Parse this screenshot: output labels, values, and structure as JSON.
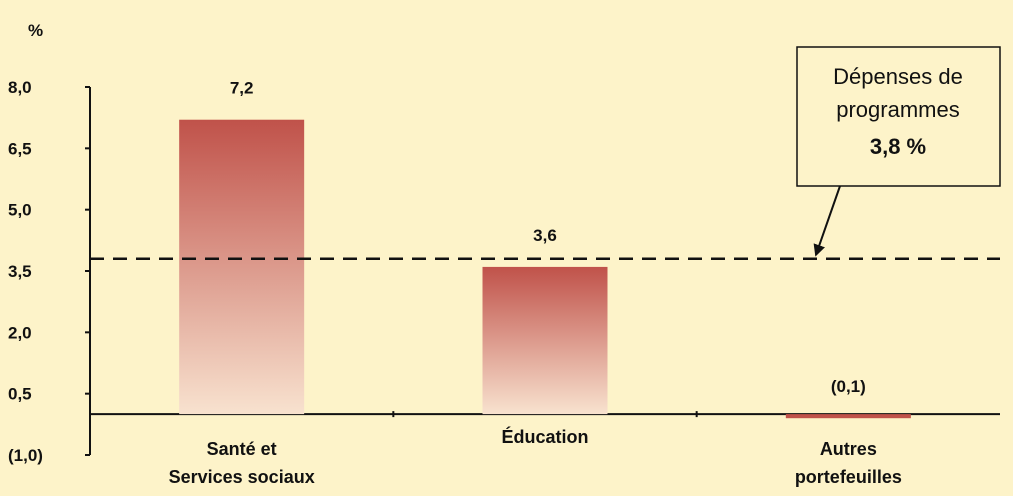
{
  "colors": {
    "background": "#fdf3c9",
    "bar_top": "#c0524a",
    "bar_bottom": "#f6dcc8",
    "axis": "#111111"
  },
  "chart_data": {
    "type": "bar",
    "unit_label": "%",
    "categories": [
      [
        "Santé et",
        "Services sociaux"
      ],
      [
        "Éducation"
      ],
      [
        "Autres",
        "portefeuilles"
      ]
    ],
    "values": [
      7.2,
      3.6,
      -0.1
    ],
    "value_labels": [
      "7,2",
      "3,6",
      "(0,1)"
    ],
    "yticks": [
      -1.0,
      0.5,
      2.0,
      3.5,
      5.0,
      6.5,
      8.0
    ],
    "ytick_labels": [
      "(1,0)",
      "0,5",
      "2,0",
      "3,5",
      "5,0",
      "6,5",
      "8,0"
    ],
    "ylim": [
      -1.0,
      8.0
    ],
    "reference_line": {
      "value": 3.8,
      "label_lines": [
        "Dépenses de",
        "programmes"
      ],
      "value_label": "3,8 %"
    }
  }
}
